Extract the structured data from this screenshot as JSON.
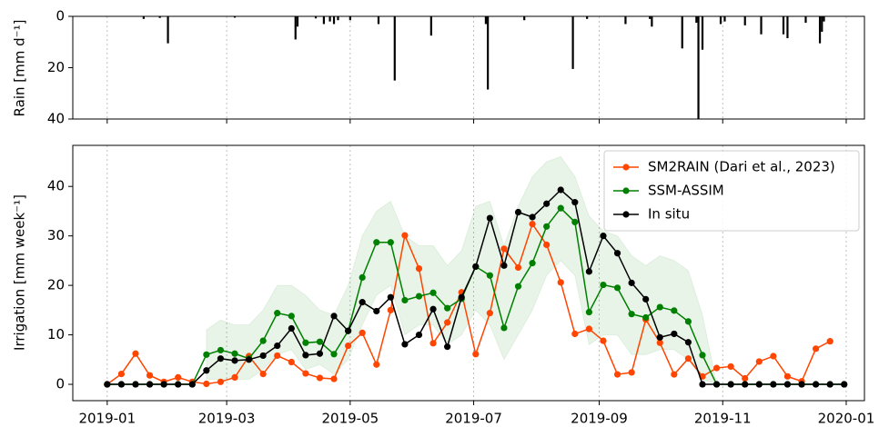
{
  "chart_data": [
    {
      "type": "bar",
      "ylabel": "Rain [mm d⁻¹]",
      "y_inverted": true,
      "color": "#000000",
      "grid": "x",
      "x": [
        "2019-01-19",
        "2019-01-27",
        "2019-01-31",
        "2019-03-05",
        "2019-04-04",
        "2019-04-05",
        "2019-04-14",
        "2019-04-18",
        "2019-04-21",
        "2019-04-23",
        "2019-04-25",
        "2019-05-01",
        "2019-05-15",
        "2019-05-23",
        "2019-06-10",
        "2019-07-07",
        "2019-07-08",
        "2019-07-26",
        "2019-08-19",
        "2019-08-26",
        "2019-09-14",
        "2019-09-26",
        "2019-09-27",
        "2019-10-12",
        "2019-10-19",
        "2019-10-20",
        "2019-10-22",
        "2019-10-31",
        "2019-11-02",
        "2019-11-12",
        "2019-11-20",
        "2019-12-01",
        "2019-12-03",
        "2019-12-12",
        "2019-12-19",
        "2019-12-20",
        "2019-12-21"
      ],
      "values": [
        1,
        0.6,
        10.5,
        0.5,
        9,
        4,
        0.8,
        3,
        2,
        3,
        1.5,
        1.5,
        3,
        25,
        7.5,
        3,
        28.5,
        1.5,
        20.5,
        1,
        3,
        1,
        4,
        12.5,
        2.5,
        40,
        13,
        3,
        2,
        3.5,
        7,
        7,
        8.5,
        2.5,
        10.5,
        6,
        2
      ],
      "xlim": [
        "2018-12-15",
        "2020-01-10"
      ],
      "ylim": [
        0,
        40
      ],
      "yticks": [
        0,
        20,
        40
      ]
    },
    {
      "type": "line",
      "ylabel": "Irrigation [mm week⁻¹]",
      "grid": "x",
      "legend": "upper right",
      "x": [
        "2019-01-01",
        "2019-01-08",
        "2019-01-15",
        "2019-01-22",
        "2019-01-29",
        "2019-02-05",
        "2019-02-12",
        "2019-02-19",
        "2019-02-26",
        "2019-03-05",
        "2019-03-12",
        "2019-03-19",
        "2019-03-26",
        "2019-04-02",
        "2019-04-09",
        "2019-04-16",
        "2019-04-23",
        "2019-04-30",
        "2019-05-07",
        "2019-05-14",
        "2019-05-21",
        "2019-05-28",
        "2019-06-04",
        "2019-06-11",
        "2019-06-18",
        "2019-06-25",
        "2019-07-02",
        "2019-07-09",
        "2019-07-16",
        "2019-07-23",
        "2019-07-30",
        "2019-08-06",
        "2019-08-13",
        "2019-08-20",
        "2019-08-27",
        "2019-09-03",
        "2019-09-10",
        "2019-09-17",
        "2019-09-24",
        "2019-10-01",
        "2019-10-08",
        "2019-10-15",
        "2019-10-22",
        "2019-10-29",
        "2019-11-05",
        "2019-11-12",
        "2019-11-19",
        "2019-11-26",
        "2019-12-03",
        "2019-12-10",
        "2019-12-17",
        "2019-12-24",
        "2019-12-31"
      ],
      "series": [
        {
          "name": "SM2RAIN (Dari et al., 2023)",
          "color": "#ff4500",
          "values": [
            0,
            2.1,
            6.2,
            1.8,
            0.5,
            1.4,
            0.5,
            0.1,
            0.5,
            1.4,
            5.7,
            2.1,
            5.8,
            4.5,
            2.2,
            1.3,
            1.1,
            7.8,
            10.4,
            4.0,
            15.0,
            30.1,
            23.4,
            8.3,
            12.5,
            18.6,
            6.1,
            14.4,
            27.4,
            23.6,
            32.4,
            28.2,
            20.6,
            10.2,
            11.2,
            8.8,
            2.0,
            2.4,
            13.1,
            8.4,
            2.0,
            5.2,
            1.6,
            3.3,
            3.6,
            1.2,
            4.6,
            5.7,
            1.6,
            0.6,
            7.2,
            8.7,
            null
          ]
        },
        {
          "name": "SSM-ASSIM",
          "color": "#008000",
          "values": [
            0,
            0,
            0,
            0,
            0,
            0,
            0,
            6.0,
            6.9,
            6.2,
            5.2,
            8.8,
            14.4,
            13.8,
            8.4,
            8.6,
            6.1,
            10.8,
            21.6,
            28.7,
            28.7,
            17.0,
            17.8,
            18.5,
            15.4,
            17.3,
            23.8,
            22.0,
            11.4,
            19.8,
            24.5,
            31.9,
            35.6,
            32.8,
            14.6,
            20.1,
            19.5,
            14.2,
            13.5,
            15.6,
            14.9,
            12.7,
            5.9,
            0,
            0,
            0,
            0,
            0,
            0,
            0,
            0,
            0,
            0
          ],
          "band_lower": [
            null,
            null,
            null,
            null,
            null,
            null,
            null,
            1,
            1,
            1,
            1,
            3,
            6,
            7,
            3,
            4,
            2,
            5,
            12,
            18,
            20,
            10,
            12,
            12,
            8,
            10,
            15,
            12,
            5,
            10,
            15,
            22,
            25,
            22,
            8,
            10,
            10,
            6,
            6,
            7,
            7,
            5,
            1,
            0,
            null,
            null,
            null,
            null,
            null,
            null,
            null,
            null,
            null
          ],
          "band_upper": [
            null,
            null,
            null,
            null,
            null,
            null,
            null,
            11,
            13,
            12,
            12,
            15,
            20,
            20,
            18,
            15,
            14,
            20,
            30,
            35,
            37,
            30,
            28,
            28,
            24,
            27,
            36,
            37,
            28,
            36,
            42,
            45,
            46,
            42,
            34,
            31,
            30,
            26,
            24,
            26,
            25,
            23,
            14,
            0,
            null,
            null,
            null,
            null,
            null,
            null,
            null,
            null,
            null
          ]
        },
        {
          "name": "In situ",
          "color": "#000000",
          "values": [
            0,
            0,
            0,
            0,
            0,
            0,
            0,
            2.8,
            5.2,
            4.8,
            5.0,
            5.8,
            7.8,
            11.3,
            5.9,
            6.2,
            13.8,
            10.8,
            16.6,
            14.8,
            17.6,
            8.1,
            10.0,
            15.2,
            7.6,
            17.6,
            23.8,
            33.6,
            24.0,
            34.8,
            33.8,
            36.5,
            39.3,
            36.8,
            22.8,
            30.0,
            26.5,
            20.5,
            17.2,
            9.5,
            10.2,
            8.5,
            0,
            0,
            0,
            0,
            0,
            0,
            0,
            0,
            0,
            0,
            0
          ]
        }
      ],
      "xlim": [
        "2018-12-15",
        "2020-01-10"
      ],
      "xticks": [
        {
          "value": "2019-01-01",
          "label": "2019-01"
        },
        {
          "value": "2019-03-01",
          "label": "2019-03"
        },
        {
          "value": "2019-05-01",
          "label": "2019-05"
        },
        {
          "value": "2019-07-01",
          "label": "2019-07"
        },
        {
          "value": "2019-09-01",
          "label": "2019-09"
        },
        {
          "value": "2019-11-01",
          "label": "2019-11"
        },
        {
          "value": "2020-01-01",
          "label": "2020-01"
        }
      ],
      "ylim": [
        -3.3,
        48.3
      ],
      "yticks": [
        0,
        10,
        20,
        30,
        40
      ]
    }
  ]
}
